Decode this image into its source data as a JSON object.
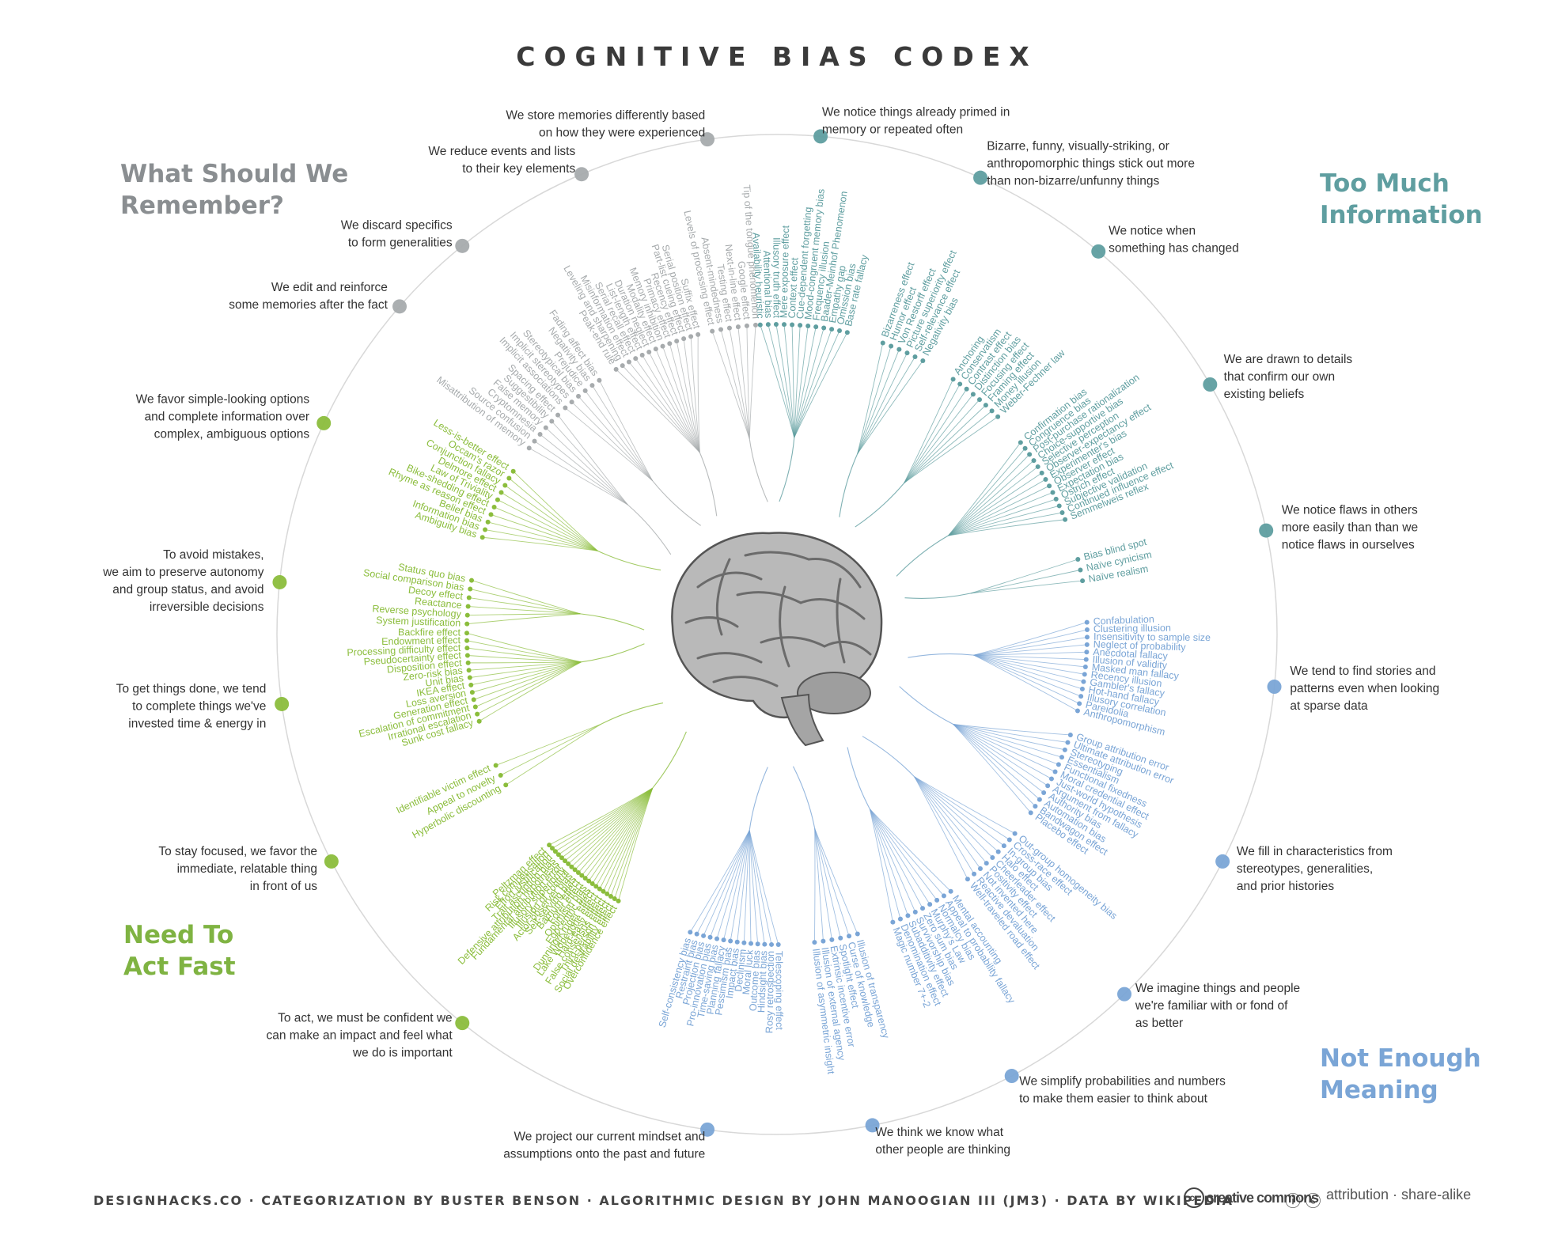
{
  "title": "COGNITIVE BIAS CODEX",
  "quadrant_titles": [
    {
      "line1": "Too Much",
      "line2": "Information",
      "color": "#5f9ea0"
    },
    {
      "line1": "Not Enough",
      "line2": "Meaning",
      "color": "#7aa5d6"
    },
    {
      "line1": "Need To",
      "line2": "Act Fast",
      "color": "#7fb342"
    },
    {
      "line1": "What Should We",
      "line2": "Remember?",
      "color": "#8a8e91"
    }
  ],
  "colors": {
    "info": "#5f9ea0",
    "info_teal": "#6aa8a8",
    "meaning": "#7aa5d6",
    "act": "#8bbd3c",
    "remember": "#a7abad",
    "ring": "#d8d8d8",
    "brain": "#8a8a8a"
  },
  "categories": [
    {
      "group": "info",
      "angle": -85,
      "text": [
        "We notice things already primed in",
        "memory or repeated often"
      ],
      "biases": [
        "Availability heuristic",
        "Attentional bias",
        "Illusory truth effect",
        "Mere exposure effect",
        "Context effect",
        "Cue-dependent forgetting",
        "Mood-congruent memory bias",
        "Frequency illusion",
        "Baader-Meinhof Phenomenon",
        "Empathy gap",
        "Omission bias",
        "Base rate fallacy"
      ]
    },
    {
      "group": "info",
      "angle": -66,
      "text": [
        "Bizarre, funny, visually-striking, or",
        "anthropomorphic things stick out more",
        "than non-bizarre/unfunny things"
      ],
      "biases": [
        "Bizarreness effect",
        "Humor effect",
        "Von Restorff effect",
        "Picture superiority effect",
        "Self-relevance effect",
        "Negativity bias"
      ]
    },
    {
      "group": "info",
      "angle": -50,
      "text": [
        "We notice when",
        "something has changed"
      ],
      "biases": [
        "Anchoring",
        "Conservatism",
        "Contrast effect",
        "Distinction bias",
        "Focusing effect",
        "Framing effect",
        "Money illusion",
        "Weber-Fechner law"
      ]
    },
    {
      "group": "info",
      "angle": -30,
      "text": [
        "We are drawn to details",
        "that confirm our own",
        "existing beliefs"
      ],
      "biases": [
        "Confirmation bias",
        "Congruence bias",
        "Post-purchase rationalization",
        "Choice-supportive bias",
        "Selective perception",
        "Observer-expectancy effect",
        "Experimenter's bias",
        "Observer effect",
        "Expectation bias",
        "Ostrich effect",
        "Subjective validation",
        "Continued influence effect",
        "Semmelweis reflex"
      ]
    },
    {
      "group": "info",
      "angle": -12,
      "text": [
        "We notice flaws in others",
        "more easily than than we",
        "notice flaws in ourselves"
      ],
      "biases": [
        "Bias blind spot",
        "Naïve cynicism",
        "Naïve realism"
      ]
    },
    {
      "group": "meaning",
      "angle": 6,
      "text": [
        "We tend to find stories and",
        "patterns even when looking",
        "at sparse data"
      ],
      "biases": [
        "Confabulation",
        "Clustering illusion",
        "Insensitivity to sample size",
        "Neglect of probability",
        "Anecdotal fallacy",
        "Illusion of validity",
        "Masked man fallacy",
        "Recency illusion",
        "Gambler's fallacy",
        "Hot-hand fallacy",
        "Illusory correlation",
        "Pareidolia",
        "Anthropomorphism"
      ]
    },
    {
      "group": "meaning",
      "angle": 27,
      "text": [
        "We fill in characteristics from",
        "stereotypes, generalities,",
        "and prior histories"
      ],
      "biases": [
        "Group attribution error",
        "Ultimate attribution error",
        "Stereotyping",
        "Essentialism",
        "Functional fixedness",
        "Moral credential effect",
        "Just-world hypothesis",
        "Argument from fallacy",
        "Authority bias",
        "Automation bias",
        "Bandwagon effect",
        "Placebo effect"
      ]
    },
    {
      "group": "meaning",
      "angle": 46,
      "text": [
        "We imagine things and people",
        "we're familiar with or fond of",
        "as better"
      ],
      "biases": [
        "Out-group homogeneity bias",
        "Cross-race effect",
        "In-group bias",
        "Halo effect",
        "Cheerleader effect",
        "Positivity effect",
        "Not invented here",
        "Reactive devaluation",
        "Well-traveled road effect"
      ]
    },
    {
      "group": "meaning",
      "angle": 62,
      "text": [
        "We simplify probabilities and numbers",
        "to make them easier to think about"
      ],
      "biases": [
        "Mental accounting",
        "Appeal to probability fallacy",
        "Normalcy bias",
        "Murphy's Law",
        "Zero sum bias",
        "Survivorship bias",
        "Subadditivity effect",
        "Denomination effect",
        "Magic number 7+-2"
      ]
    },
    {
      "group": "meaning",
      "angle": 79,
      "text": [
        "We think we know what",
        "other people are thinking"
      ],
      "biases": [
        "Illusion of transparency",
        "Curse of knowledge",
        "Spotlight effect",
        "Extrinsic incentive error",
        "Illusion of external agency",
        "Illusion of asymmetric insight"
      ]
    },
    {
      "group": "meaning",
      "angle": 98,
      "text": [
        "We project our current mindset and",
        "assumptions onto the past and future"
      ],
      "biases": [
        "Telescoping effect",
        "Rosy retrospection",
        "Hindsight bias",
        "Outcome bias",
        "Moral luck",
        "Declinism",
        "Impact bias",
        "Pessimism bias",
        "Planning fallacy",
        "Time-saving bias",
        "Pro-innovation bias",
        "Projection bias",
        "Restraint bias",
        "Self-consistency bias"
      ]
    },
    {
      "group": "act",
      "angle": 129,
      "text": [
        "To act, we must be confident we",
        "can make an impact and feel what",
        "we do is important"
      ],
      "biases": [
        "Overconfidence effect",
        "Social desirability effect",
        "Third-person effect",
        "False consensus effect",
        "Hard-easy effect",
        "Lake Wobegone effect",
        "Dunning-Kruger effect",
        "Egocentric bias",
        "Optimism bias",
        "Forer effect",
        "Barnum effect",
        "Self-serving bias",
        "Actor-observer bias",
        "Illusion of control",
        "Illusory superiority",
        "Fundamental attribution error",
        "Defensive attribution hypothesis",
        "Trait ascription bias",
        "Effort justification",
        "Risk compensation",
        "Peltzman effect"
      ]
    },
    {
      "group": "act",
      "angle": 153,
      "text": [
        "To stay focused, we favor the",
        "immediate, relatable thing",
        "in front of us"
      ],
      "biases": [
        "Hyperbolic discounting",
        "Appeal to novelty",
        "Identifiable victim effect"
      ]
    },
    {
      "group": "act",
      "angle": 172,
      "text": [
        "To get things done, we tend",
        "to complete things we've",
        "invested time & energy in"
      ],
      "biases": [
        "Sunk cost fallacy",
        "Irrational escalation",
        "Escalation of commitment",
        "Generation effect",
        "Loss aversion",
        "IKEA effect",
        "Unit bias",
        "Zero-risk bias",
        "Disposition effect",
        "Pseudocertainty effect",
        "Processing difficulty effect",
        "Endowment effect",
        "Backfire effect"
      ]
    },
    {
      "group": "act",
      "angle": -174,
      "text": [
        "To avoid mistakes,",
        "we aim to preserve autonomy",
        "and group status, and avoid",
        "irreversible decisions"
      ],
      "biases": [
        "System justification",
        "Reverse psychology",
        "Reactance",
        "Decoy effect",
        "Social comparison bias",
        "Status quo bias"
      ]
    },
    {
      "group": "act",
      "angle": -155,
      "text": [
        "We favor simple-looking options",
        "and complete information over",
        "complex, ambiguous options"
      ],
      "biases": [
        "Ambiguity bias",
        "Information bias",
        "Belief bias",
        "Rhyme as reason effect",
        "Bike-shedding effect",
        "Law of Triviality",
        "Delmore effect",
        "Conjunction fallacy",
        "Occam's razor",
        "Less-is-better effect"
      ]
    },
    {
      "group": "remember",
      "angle": -139,
      "text": [
        "We edit and reinforce",
        "some memories after the fact"
      ],
      "biases": [
        "Misattribution of memory",
        "Source confusion",
        "Cryptomnesia",
        "False memory",
        "Suggestibility",
        "Spacing effect"
      ]
    },
    {
      "group": "remember",
      "angle": -129,
      "text": [
        "We discard specifics",
        "to form generalities"
      ],
      "biases": [
        "Implicit associations",
        "Implicit stereotypes",
        "Stereotypical bias",
        "Prejudice",
        "Negativity bias",
        "Fading affect bias"
      ]
    },
    {
      "group": "remember",
      "angle": -113,
      "text": [
        "We reduce events and lists",
        "to their key elements"
      ],
      "biases": [
        "Peak-end rule",
        "Leveling and sharpening",
        "Misinformation effect",
        "Serial recall effect",
        "List-length effect",
        "Duration neglect",
        "Modality effect",
        "Memory inhibition",
        "Primacy effect",
        "Recency effect",
        "Part-list cueing effect",
        "Serial position effect",
        "Suffix effect"
      ]
    },
    {
      "group": "remember",
      "angle": -98,
      "text": [
        "We store memories differently based",
        "on how they were experienced"
      ],
      "biases": [
        "Levels of processing effect",
        "Absent-mindedness",
        "Testing effect",
        "Next-in-line effect",
        "Google effect",
        "Tip of the tongue phenomenon"
      ]
    }
  ],
  "footer": "DESIGNHACKS.CO · CATEGORIZATION BY BUSTER BENSON · ALGORITHMIC DESIGN BY JOHN MANOOGIAN III (JM3) · DATA BY WIKIPEDIA",
  "license": {
    "logo_text": "creative commons",
    "text": "attribution · share-alike"
  }
}
